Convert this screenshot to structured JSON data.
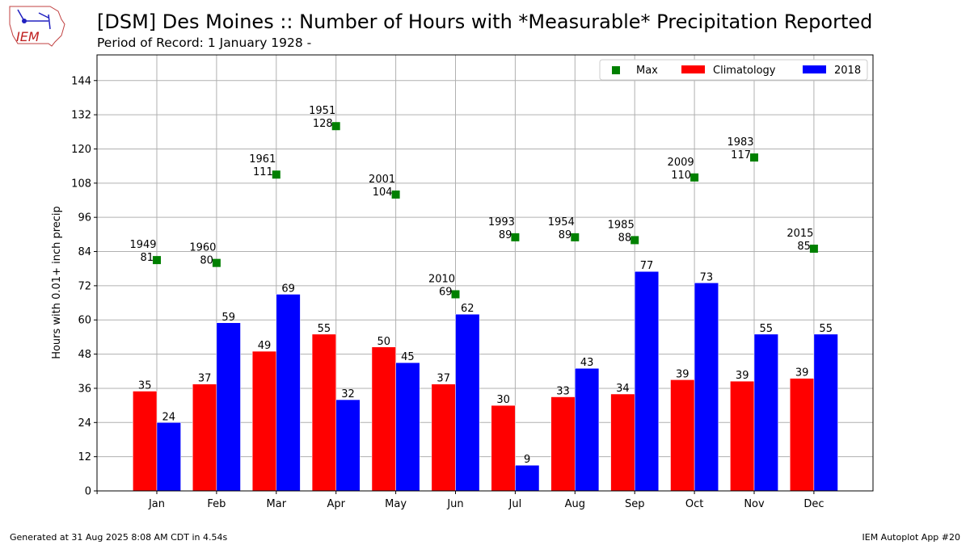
{
  "title": "[DSM] Des Moines :: Number of Hours with *Measurable* Precipitation Reported",
  "subtitle": "Period of Record: 1 January 1928 -",
  "footer_left": "Generated at 31 Aug 2025 8:08 AM CDT in 4.54s",
  "footer_right": "IEM Autoplot App #20",
  "logo_text": "IEM",
  "colors": {
    "climatology": "#ff0000",
    "year": "#0000ff",
    "max": "#008000",
    "grid": "#b0b0b0"
  },
  "chart_data": {
    "type": "bar",
    "ylabel": "Hours with 0.01+ inch precip",
    "ylim": [
      0,
      153
    ],
    "yticks": [
      0,
      12,
      24,
      36,
      48,
      60,
      72,
      84,
      96,
      108,
      120,
      132,
      144
    ],
    "categories": [
      "Jan",
      "Feb",
      "Mar",
      "Apr",
      "May",
      "Jun",
      "Jul",
      "Aug",
      "Sep",
      "Oct",
      "Nov",
      "Dec"
    ],
    "grid": true,
    "legend_position": "top-right",
    "series": [
      {
        "name": "Climatology",
        "values": [
          35,
          37.5,
          49,
          55,
          50.5,
          37.5,
          30,
          33,
          34,
          39,
          38.5,
          39.5
        ],
        "labels": [
          "35",
          "37",
          "49",
          "55",
          "50",
          "37",
          "30",
          "33",
          "34",
          "39",
          "39",
          "39"
        ]
      },
      {
        "name": "2018",
        "values": [
          24,
          59,
          69,
          32,
          45,
          62,
          9,
          43,
          77,
          73,
          55,
          55
        ],
        "labels": [
          "24",
          "59",
          "69",
          "32",
          "45",
          "62",
          "9",
          "43",
          "77",
          "73",
          "55",
          "55"
        ]
      }
    ],
    "max": {
      "name": "Max",
      "values": [
        81,
        80,
        111,
        128,
        104,
        69,
        89,
        89,
        88,
        110,
        117,
        85
      ],
      "years": [
        "1949",
        "1960",
        "1961",
        "1951",
        "2001",
        "2010",
        "1993",
        "1954",
        "1985",
        "2009",
        "1983",
        "2015"
      ]
    }
  }
}
